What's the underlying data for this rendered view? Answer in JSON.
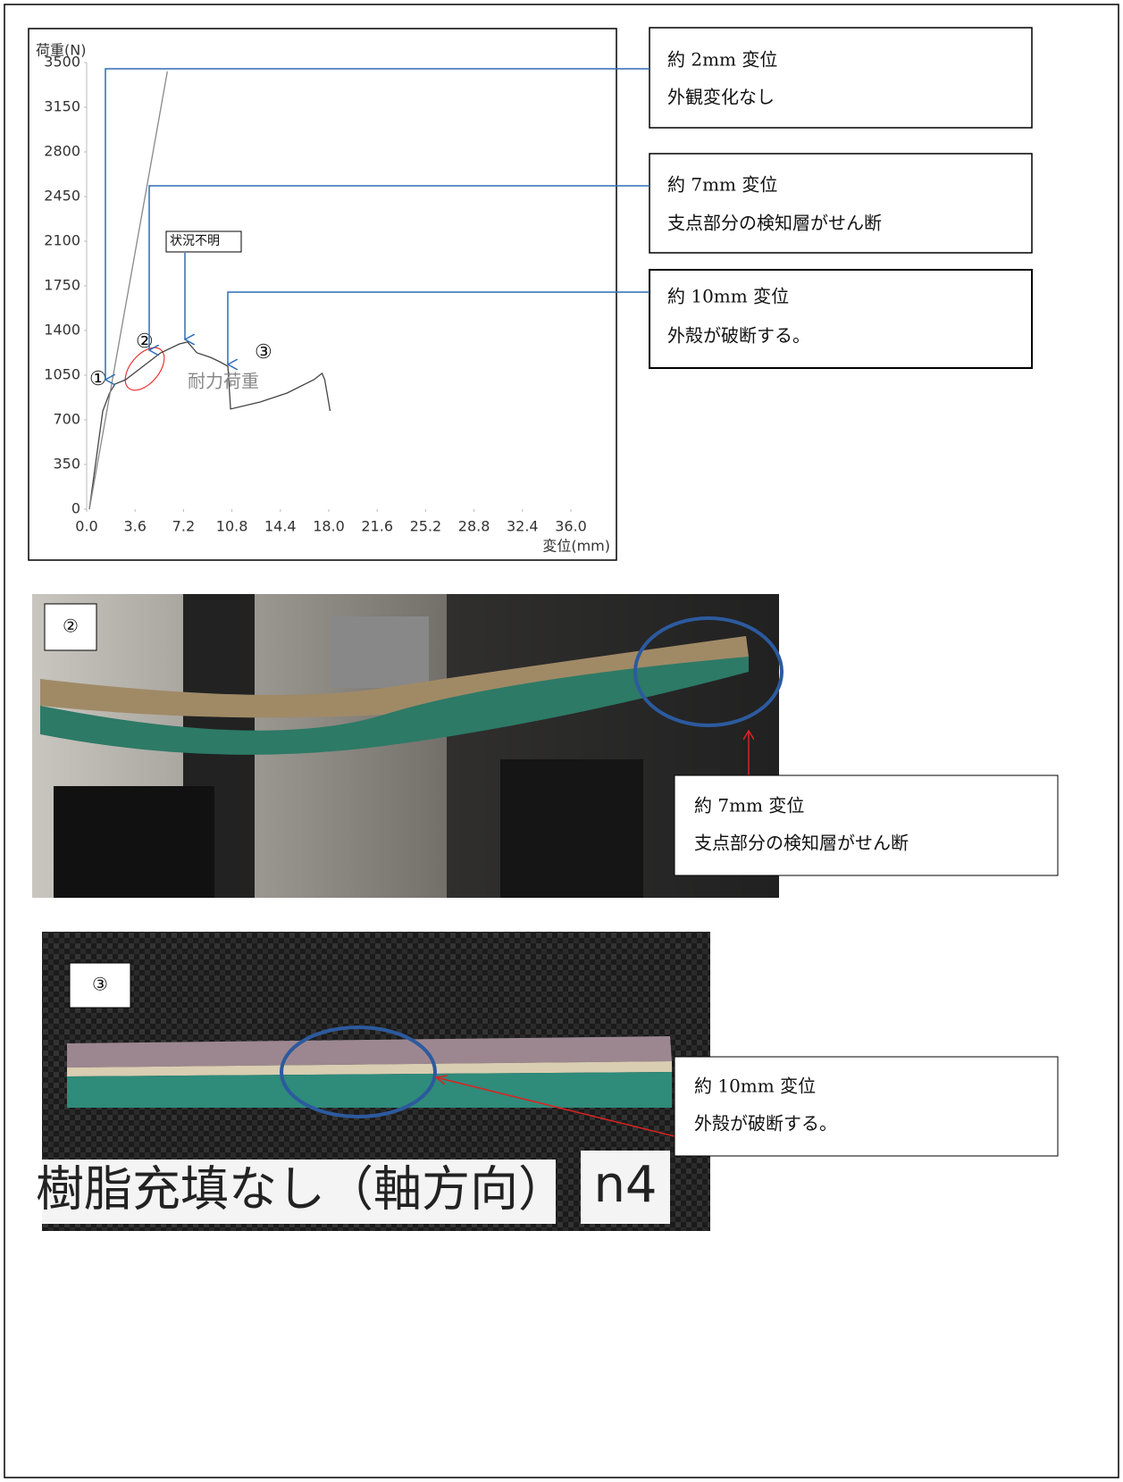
{
  "chart_data": {
    "type": "line",
    "y_label": "荷重(N)",
    "x_label": "変位(mm)",
    "xlim": [
      0,
      36
    ],
    "ylim": [
      0,
      3500
    ],
    "xticks": [
      {
        "value": 0,
        "label": "0.0"
      },
      3.6,
      7.2,
      10.8,
      14.4,
      {
        "value": 18,
        "label": "18.0"
      },
      21.6,
      25.2,
      28.8,
      32.4,
      {
        "value": 36,
        "label": "36.0"
      }
    ],
    "yticks": [
      0,
      350,
      700,
      1050,
      1400,
      1750,
      2100,
      2450,
      2800,
      3150,
      3500
    ],
    "series": [
      {
        "color": "#444444",
        "x": [
          0.2,
          1.2,
          1.7,
          2.1,
          2.9,
          4.2,
          5.5,
          6.9,
          7.5,
          8.2,
          9.2,
          9.9,
          10.5,
          10.7,
          12.9,
          14.9,
          16.9,
          17.5,
          17.7,
          18.1
        ],
        "values": [
          0,
          770,
          910,
          980,
          1015,
          1120,
          1225,
          1295,
          1310,
          1225,
          1190,
          1155,
          1120,
          785,
          840,
          910,
          1015,
          1065,
          1015,
          770
        ]
      },
      {
        "color": "#888888",
        "x": [
          0.2,
          6.0
        ],
        "values": [
          0,
          3430
        ]
      }
    ],
    "annotations": [
      "①",
      "②",
      "③",
      "状況不明",
      "耐力荷重"
    ]
  },
  "callouts": [
    {
      "lines": [
        "約 2mm 変位",
        "外観変化なし"
      ]
    },
    {
      "lines": [
        "約 7mm 変位",
        "支点部分の検知層がせん断"
      ]
    },
    {
      "lines": [
        "約 10mm 変位",
        "外殻が破断する。"
      ]
    }
  ],
  "photos": [
    {
      "label": "②",
      "callout": [
        "約 7mm 変位",
        "支点部分の検知層がせん断"
      ]
    },
    {
      "label": "③",
      "callout": [
        "約 10mm 変位",
        "外殻が破断する。"
      ],
      "sign": "樹脂充填なし（軸方向）",
      "sign_id": "n4"
    }
  ]
}
